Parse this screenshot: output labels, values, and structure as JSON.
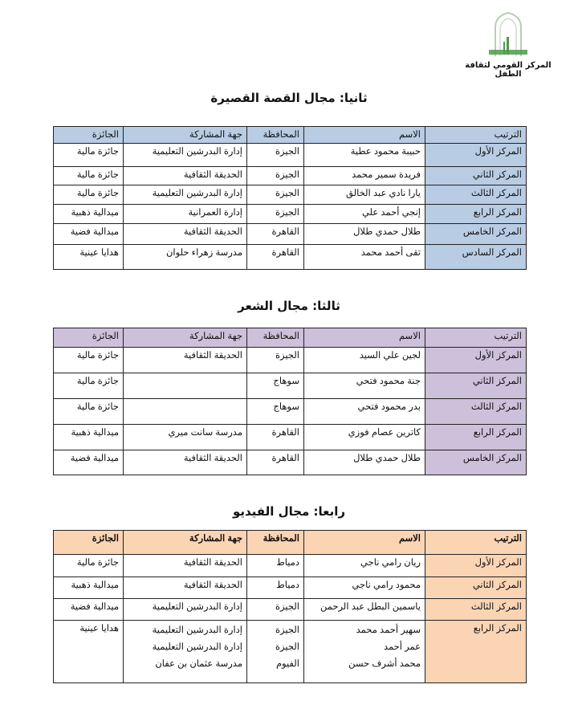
{
  "header": {
    "logo_text": "المركز القومي لثقافة الطفل",
    "logo_color": "#4f9a4a"
  },
  "columns": [
    "الترتيب",
    "الاسم",
    "المحافظة",
    "جهة المشاركة",
    "الجائزة"
  ],
  "sections": [
    {
      "title": "ثانيا: مجال القصة القصيرة",
      "shade": "#b8cce4",
      "rows": [
        [
          [
            "المركز الأول"
          ],
          [
            "حبيبة محمود عطية"
          ],
          [
            "الجيزة"
          ],
          [
            "إدارة البدرشين التعليمية"
          ],
          [
            "جائزة مالية"
          ]
        ],
        [
          [
            "المركز الثاني"
          ],
          [
            "فريدة سمير محمد"
          ],
          [
            "الجيزة"
          ],
          [
            "الحديقة الثقافية"
          ],
          [
            "جائزة مالية"
          ]
        ],
        [
          [
            "المركز الثالث"
          ],
          [
            "يارا نادي عبد الخالق"
          ],
          [
            "الجيزة"
          ],
          [
            "إدارة البدرشين التعليمية"
          ],
          [
            "جائزة مالية"
          ]
        ],
        [
          [
            "المركز الرابع"
          ],
          [
            "إنجي أحمد علي"
          ],
          [
            "الجيزة"
          ],
          [
            "إدارة العمرانية"
          ],
          [
            "ميدالية ذهبية"
          ]
        ],
        [
          [
            "المركز الخامس"
          ],
          [
            "طلال حمدي طلال"
          ],
          [
            "القاهرة"
          ],
          [
            "الحديقة الثقافية"
          ],
          [
            "ميدالية فضية"
          ]
        ],
        [
          [
            "المركز السادس"
          ],
          [
            "تقى أحمد محمد"
          ],
          [
            "القاهرة"
          ],
          [
            "مدرسة زهراء حلوان"
          ],
          [
            "هدايا عينية"
          ]
        ]
      ]
    },
    {
      "title": "ثالثا: مجال الشعر",
      "shade": "#ccc0da",
      "rows": [
        [
          [
            "المركز الأول"
          ],
          [
            "لجين علي السيد"
          ],
          [
            "الجيزة"
          ],
          [
            "الحديقة الثقافية"
          ],
          [
            "جائزة مالية"
          ]
        ],
        [
          [
            "المركز الثاني"
          ],
          [
            "جنة محمود فتحي"
          ],
          [
            "سوهاج"
          ],
          [
            ""
          ],
          [
            "جائزة مالية"
          ]
        ],
        [
          [
            "المركز الثالث"
          ],
          [
            "بدر محمود فتحي"
          ],
          [
            "سوهاج"
          ],
          [
            ""
          ],
          [
            "جائزة مالية"
          ]
        ],
        [
          [
            "المركز الرابع"
          ],
          [
            "كاترين عصام فوزي"
          ],
          [
            "القاهرة"
          ],
          [
            "مدرسة سانت ميري"
          ],
          [
            "ميدالية ذهبية"
          ]
        ],
        [
          [
            "المركز الخامس"
          ],
          [
            "طلال حمدي طلال"
          ],
          [
            "القاهرة"
          ],
          [
            "الحديقة الثقافية"
          ],
          [
            "ميدالية فضية"
          ]
        ]
      ]
    },
    {
      "title": "رابعا: مجال الفيديو",
      "shade": "#fbd4b4",
      "rows": [
        [
          [
            "المركز الأول"
          ],
          [
            "ريان رامي ناجي"
          ],
          [
            "دمياط"
          ],
          [
            "الحديقة الثقافية"
          ],
          [
            "جائزة مالية"
          ]
        ],
        [
          [
            "المركز الثاني"
          ],
          [
            "محمود رامي ناجي"
          ],
          [
            "دمياط"
          ],
          [
            "الحديقة الثقافية"
          ],
          [
            "ميدالية ذهبية"
          ]
        ],
        [
          [
            "المركز الثالث"
          ],
          [
            "ياسمين البطل عبد الرحمن"
          ],
          [
            "الجيزة"
          ],
          [
            "إدارة البدرشين التعليمية"
          ],
          [
            "ميدالية فضية"
          ]
        ],
        [
          [
            "المركز الرابع"
          ],
          [
            "سهير أحمد محمد",
            "عمر أحمد",
            "محمد أشرف حسن"
          ],
          [
            "الجيزة",
            "الجيزة",
            "الفيوم"
          ],
          [
            "إدارة البدرشين التعليمية",
            "إدارة البدرشين التعليمية",
            "مدرسة عثمان بن عفان"
          ],
          [
            "هدايا عينية"
          ]
        ]
      ]
    }
  ]
}
